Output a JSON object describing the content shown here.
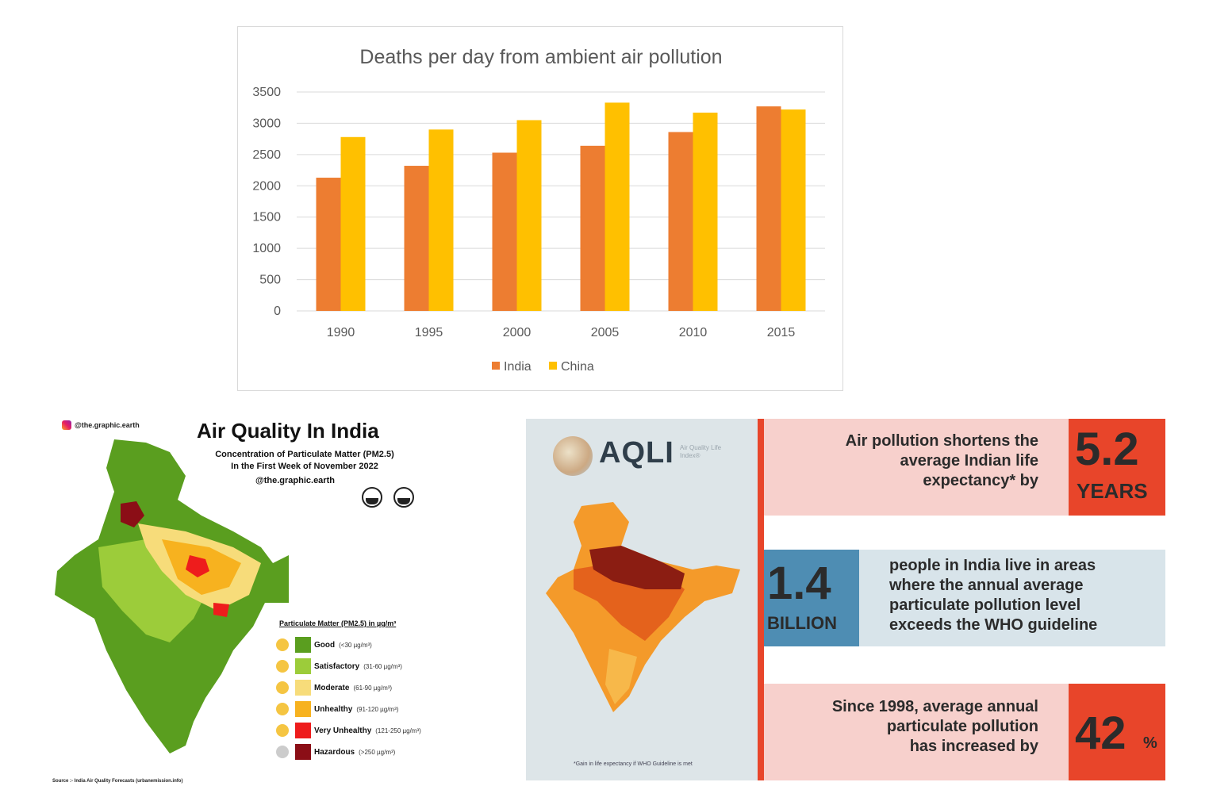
{
  "chart_data": {
    "type": "bar",
    "title": "Deaths per day from ambient air pollution",
    "xlabel": "",
    "ylabel": "",
    "categories": [
      "1990",
      "1995",
      "2000",
      "2005",
      "2010",
      "2015"
    ],
    "series": [
      {
        "name": "India",
        "color": "#ed7d31",
        "values": [
          2130,
          2320,
          2530,
          2640,
          2860,
          3270
        ]
      },
      {
        "name": "China",
        "color": "#ffc000",
        "values": [
          2780,
          2900,
          3050,
          3330,
          3170,
          3220
        ]
      }
    ],
    "ylim": [
      0,
      3500
    ],
    "yticks": [
      "0",
      "500",
      "1000",
      "1500",
      "2000",
      "2500",
      "3000",
      "3500"
    ],
    "grid": true,
    "legend_position": "bottom"
  },
  "map_panel": {
    "handle": "@the.graphic.earth",
    "title": "Air Quality In India",
    "subtitle_line1": "Concentration of Particulate Matter (PM2.5)",
    "subtitle_line2": "In the First Week of November 2022",
    "handle2": "@the.graphic.earth",
    "legend_title": "Particulate Matter (PM2.5) in µg/m³",
    "legend": [
      {
        "label": "Good",
        "range": "(<30 µg/m³)",
        "color": "#5a9e1f"
      },
      {
        "label": "Satisfactory",
        "range": "(31-60 µg/m³)",
        "color": "#9ccc3a"
      },
      {
        "label": "Moderate",
        "range": "(61-90 µg/m³)",
        "color": "#f7dc7a"
      },
      {
        "label": "Unhealthy",
        "range": "(91-120 µg/m³)",
        "color": "#f7b21f"
      },
      {
        "label": "Very Unhealthy",
        "range": "(121-250 µg/m³)",
        "color": "#ee1c1c"
      },
      {
        "label": "Hazardous",
        "range": "(>250 µg/m³)",
        "color": "#8b0e16"
      }
    ],
    "source": "Source :- India Air Quality Forecasts (urbanemission.info)"
  },
  "aqli_panel": {
    "logo": "AQLI",
    "logo_sub": "Air Quality Life Index®",
    "footnote": "*Gain in life expectancy if WHO Guideline is met",
    "stat1_text": [
      "Air pollution shortens the",
      "average Indian life",
      "expectancy* by"
    ],
    "stat1_number": "5.2",
    "stat1_unit": "YEARS",
    "stat2_number": "1.4",
    "stat2_unit": "BILLION",
    "stat2_text": [
      "people in India live in areas",
      "where the annual average",
      "particulate pollution level",
      "exceeds the WHO guideline"
    ],
    "stat3_text": [
      "Since 1998, average annual",
      "particulate pollution",
      "has increased by"
    ],
    "stat3_number": "42",
    "stat3_unit": "%"
  }
}
